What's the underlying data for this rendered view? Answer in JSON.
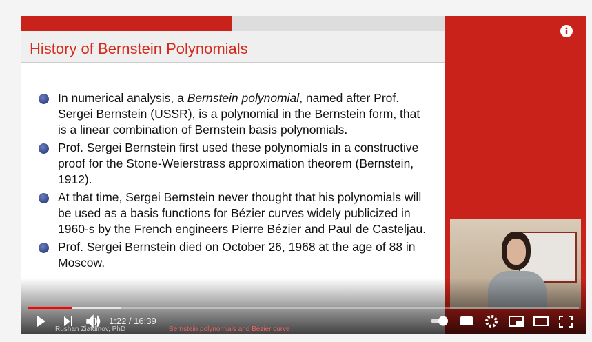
{
  "slide": {
    "title": "History of Bernstein Polynomials",
    "bullets": [
      [
        {
          "text": "In numerical analysis, a "
        },
        {
          "text": "Bernstein polynomial",
          "style": "italic"
        },
        {
          "text": ", named after Prof. Sergei Bernstein (USSR), is a polynomial in the Bernstein form, that is a linear combination of Bernstein basis polynomials."
        }
      ],
      [
        {
          "text": "Prof. Sergei Bernstein first used these polynomials in a constructive proof for the Stone-Weierstrass approximation theorem (Bernstein, 1912)."
        }
      ],
      [
        {
          "text": "At that time, Sergei Bernstein never thought that his polynomials will be used as a basis functions for Bézier curves widely publicized in 1960-s by the French engineers Pierre Bézier and Paul de Casteljau."
        }
      ],
      [
        {
          "text": "Prof. Sergei Bernstein died on October 26, 1968 at the age of 88 in Moscow."
        }
      ]
    ],
    "footer_author": "Rushan Ziatdinov, PhD",
    "footer_title": "Bernstein polynomials and Bézier curve"
  },
  "player": {
    "time": "1:22 / 16:39"
  }
}
